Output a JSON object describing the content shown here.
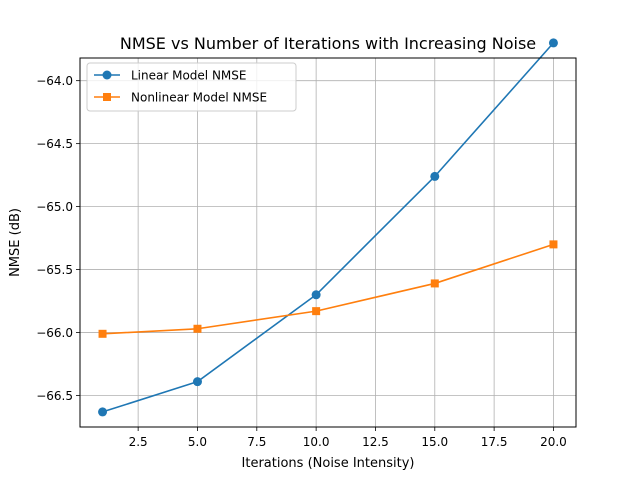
{
  "chart_data": {
    "type": "line",
    "title": "NMSE vs Number of Iterations with Increasing Noise",
    "xlabel": "Iterations (Noise Intensity)",
    "ylabel": "NMSE (dB)",
    "xlim": [
      0.05,
      20.95
    ],
    "ylim": [
      -66.75,
      -63.82
    ],
    "xticks": [
      2.5,
      5.0,
      7.5,
      10.0,
      12.5,
      15.0,
      17.5,
      20.0
    ],
    "xtick_labels": [
      "2.5",
      "5.0",
      "7.5",
      "10.0",
      "12.5",
      "15.0",
      "17.5",
      "20.0"
    ],
    "yticks": [
      -66.5,
      -66.0,
      -65.5,
      -65.0,
      -64.5,
      -64.0
    ],
    "ytick_labels": [
      "−66.5",
      "−66.0",
      "−65.5",
      "−65.0",
      "−64.5",
      "−64.0"
    ],
    "grid": true,
    "legend_position": "upper-left",
    "x": [
      1,
      5,
      10,
      15,
      20
    ],
    "series": [
      {
        "name": "Linear Model NMSE",
        "values": [
          -66.63,
          -66.39,
          -65.7,
          -64.76,
          -63.7
        ],
        "color": "#1f77b4",
        "marker": "circle"
      },
      {
        "name": "Nonlinear Model NMSE",
        "values": [
          -66.01,
          -65.97,
          -65.83,
          -65.61,
          -65.3
        ],
        "color": "#ff7f0e",
        "marker": "square"
      }
    ]
  }
}
